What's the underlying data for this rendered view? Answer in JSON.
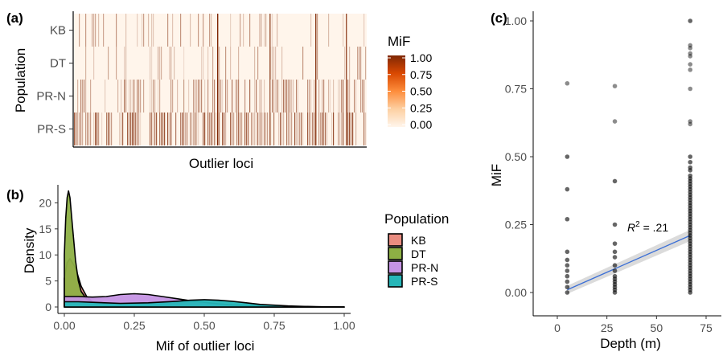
{
  "chart_data": [
    {
      "panel": "(a)",
      "type": "heatmap",
      "xlabel": "Outlier loci",
      "ylabel": "Population",
      "rows": [
        "KB",
        "DT",
        "PR-N",
        "PR-S"
      ],
      "legend": {
        "title": "MiF",
        "ticks": [
          "1.00",
          "0.75",
          "0.50",
          "0.25",
          "0.00"
        ],
        "low_color": "#fff5eb",
        "high_color": "#7f2704"
      }
    },
    {
      "panel": "(b)",
      "type": "area",
      "xlabel": "Mif of outlier loci",
      "ylabel": "Density",
      "xlim": [
        0,
        1
      ],
      "ylim": [
        0,
        23
      ],
      "x_ticks": [
        "0.00",
        "0.25",
        "0.50",
        "0.75",
        "1.00"
      ],
      "y_ticks": [
        "0",
        "5",
        "10",
        "15",
        "20"
      ],
      "legend": {
        "title": "Population",
        "placement": "right"
      },
      "series": [
        {
          "name": "KB",
          "color": "#e98c80",
          "x": [
            0,
            0.01,
            0.02,
            0.04,
            0.06,
            0.08,
            0.1,
            0.15,
            0.2,
            0.3,
            0.5,
            0.7,
            1.0
          ],
          "values": [
            5.5,
            8.5,
            9.3,
            7.5,
            4.0,
            2.0,
            1.0,
            0.5,
            0.3,
            0.2,
            0.1,
            0.05,
            0.0
          ]
        },
        {
          "name": "DT",
          "color": "#8db044",
          "x": [
            0,
            0.005,
            0.01,
            0.015,
            0.02,
            0.03,
            0.04,
            0.05,
            0.06,
            0.08,
            0.1,
            0.15,
            0.2,
            0.3,
            0.5,
            1.0
          ],
          "values": [
            10,
            17,
            21,
            22.3,
            21,
            15,
            9,
            5,
            3,
            1.5,
            1.0,
            0.5,
            0.3,
            0.2,
            0.1,
            0.0
          ]
        },
        {
          "name": "PR-N",
          "color": "#c594e4",
          "x": [
            0,
            0.05,
            0.1,
            0.15,
            0.2,
            0.25,
            0.3,
            0.35,
            0.4,
            0.45,
            0.5,
            0.55,
            0.6,
            0.7,
            0.8,
            1.0
          ],
          "values": [
            2.0,
            2.0,
            1.9,
            2.0,
            2.4,
            2.55,
            2.4,
            2.0,
            1.6,
            1.2,
            0.9,
            0.6,
            0.4,
            0.2,
            0.1,
            0.0
          ]
        },
        {
          "name": "PR-S",
          "color": "#26b6b8",
          "x": [
            0,
            0.05,
            0.1,
            0.2,
            0.3,
            0.4,
            0.45,
            0.5,
            0.55,
            0.6,
            0.65,
            0.7,
            0.8,
            0.9,
            1.0
          ],
          "values": [
            1.0,
            1.0,
            0.9,
            0.7,
            0.8,
            1.1,
            1.3,
            1.4,
            1.3,
            1.1,
            0.8,
            0.5,
            0.2,
            0.05,
            0.0
          ]
        }
      ]
    },
    {
      "panel": "(c)",
      "type": "scatter",
      "xlabel": "Depth (m)",
      "ylabel": "MiF",
      "xlim": [
        0,
        75
      ],
      "ylim": [
        0,
        1
      ],
      "x_ticks": [
        "0",
        "25",
        "50",
        "75"
      ],
      "y_ticks": [
        "0.00",
        "0.25",
        "0.50",
        "0.75",
        "1.00"
      ],
      "annotation": {
        "r_label": "R",
        "r_sup": "2",
        "r_value": " = .21"
      },
      "trend": {
        "x": [
          5,
          67
        ],
        "y": [
          0.01,
          0.21
        ]
      },
      "points": {
        "depths": [
          5,
          29,
          67
        ],
        "values_depth_5": [
          0.0,
          0.02,
          0.04,
          0.06,
          0.08,
          0.1,
          0.12,
          0.15,
          0.27,
          0.38,
          0.5,
          0.77
        ],
        "values_depth_29": [
          0.0,
          0.01,
          0.02,
          0.03,
          0.04,
          0.05,
          0.06,
          0.08,
          0.1,
          0.13,
          0.15,
          0.18,
          0.25,
          0.41,
          0.63,
          0.76
        ],
        "values_depth_67": [
          0.0,
          0.01,
          0.02,
          0.03,
          0.04,
          0.05,
          0.06,
          0.07,
          0.08,
          0.09,
          0.1,
          0.11,
          0.12,
          0.13,
          0.14,
          0.15,
          0.16,
          0.17,
          0.18,
          0.19,
          0.2,
          0.21,
          0.22,
          0.23,
          0.24,
          0.25,
          0.26,
          0.27,
          0.28,
          0.29,
          0.3,
          0.31,
          0.32,
          0.33,
          0.34,
          0.35,
          0.36,
          0.37,
          0.38,
          0.39,
          0.4,
          0.41,
          0.42,
          0.43,
          0.45,
          0.46,
          0.48,
          0.5,
          0.62,
          0.63,
          0.75,
          0.82,
          0.84,
          0.87,
          0.88,
          0.9,
          0.91,
          1.0
        ]
      }
    }
  ]
}
